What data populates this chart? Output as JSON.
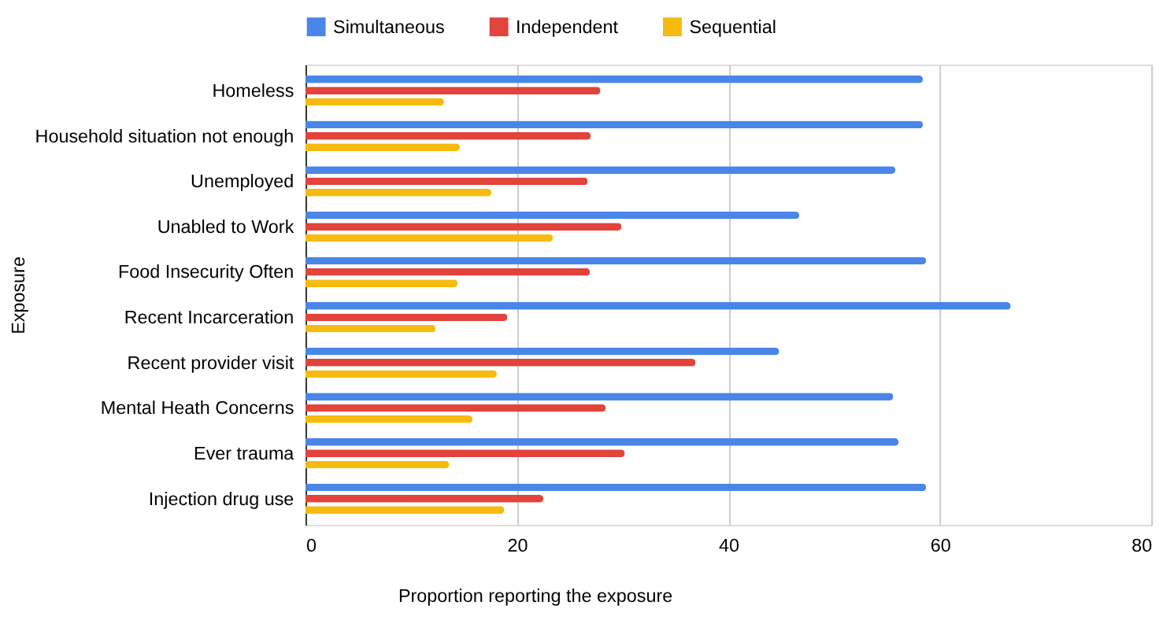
{
  "chart_data": {
    "type": "bar",
    "orientation": "horizontal",
    "xlabel": "Proportion reporting the exposure",
    "ylabel": "Exposure",
    "categories": [
      "Homeless",
      "Household situation not enough",
      "Unemployed",
      "Unabled to Work",
      "Food Insecurity Often",
      "Recent Incarceration",
      "Recent provider visit",
      "Mental Heath Concerns",
      "Ever trauma",
      "Injection drug use"
    ],
    "series": [
      {
        "name": "Simultaneous",
        "color": "#4a86e8",
        "values": [
          58.4,
          58.4,
          55.8,
          46.7,
          58.7,
          66.7,
          44.8,
          55.6,
          56.1,
          58.7
        ]
      },
      {
        "name": "Independent",
        "color": "#e2433b",
        "values": [
          27.9,
          27.0,
          26.7,
          29.9,
          26.9,
          19.1,
          36.9,
          28.4,
          30.2,
          22.5
        ]
      },
      {
        "name": "Sequential",
        "color": "#f7bb0f",
        "values": [
          13.1,
          14.6,
          17.6,
          23.4,
          14.4,
          12.3,
          18.1,
          15.8,
          13.6,
          18.8
        ]
      }
    ],
    "xlim": [
      0,
      80
    ],
    "xticks": [
      0,
      20,
      40,
      60,
      80
    ],
    "grid": "x",
    "legend": "top"
  }
}
